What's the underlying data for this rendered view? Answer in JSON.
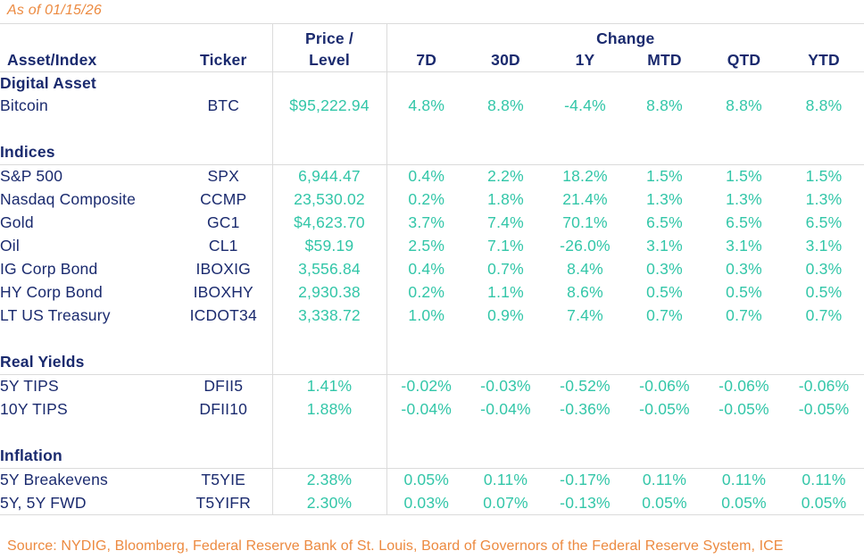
{
  "title": "As of 01/15/26",
  "source": "Source: NYDIG, Bloomberg, Federal Reserve Bank of St. Louis, Board of Governors of the Federal Reserve System, ICE",
  "colors": {
    "navy_text": "#1A2A6E",
    "teal_values": "#32C6A8",
    "orange_accent": "#EC8A40",
    "grid_lines": "#DBDBDB",
    "background": "#FFFFFF"
  },
  "table": {
    "headers": {
      "asset": "Asset/Index",
      "ticker": "Ticker",
      "price_line1": "Price /",
      "price_line2": "Level",
      "change": "Change",
      "periods": [
        "7D",
        "30D",
        "1Y",
        "MTD",
        "QTD",
        "YTD"
      ]
    },
    "sections": [
      {
        "label": "Digital Asset",
        "rows": [
          {
            "asset": "Bitcoin",
            "ticker": "BTC",
            "price": "$95,222.94",
            "changes": [
              "4.8%",
              "8.8%",
              "-4.4%",
              "8.8%",
              "8.8%",
              "8.8%"
            ]
          }
        ]
      },
      {
        "label": "Indices",
        "rows": [
          {
            "asset": "S&P 500",
            "ticker": "SPX",
            "price": "6,944.47",
            "changes": [
              "0.4%",
              "2.2%",
              "18.2%",
              "1.5%",
              "1.5%",
              "1.5%"
            ]
          },
          {
            "asset": "Nasdaq Composite",
            "ticker": "CCMP",
            "price": "23,530.02",
            "changes": [
              "0.2%",
              "1.8%",
              "21.4%",
              "1.3%",
              "1.3%",
              "1.3%"
            ]
          },
          {
            "asset": "Gold",
            "ticker": "GC1",
            "price": "$4,623.70",
            "changes": [
              "3.7%",
              "7.4%",
              "70.1%",
              "6.5%",
              "6.5%",
              "6.5%"
            ]
          },
          {
            "asset": "Oil",
            "ticker": "CL1",
            "price": "$59.19",
            "changes": [
              "2.5%",
              "7.1%",
              "-26.0%",
              "3.1%",
              "3.1%",
              "3.1%"
            ]
          },
          {
            "asset": "IG Corp Bond",
            "ticker": "IBOXIG",
            "price": "3,556.84",
            "changes": [
              "0.4%",
              "0.7%",
              "8.4%",
              "0.3%",
              "0.3%",
              "0.3%"
            ]
          },
          {
            "asset": "HY Corp Bond",
            "ticker": "IBOXHY",
            "price": "2,930.38",
            "changes": [
              "0.2%",
              "1.1%",
              "8.6%",
              "0.5%",
              "0.5%",
              "0.5%"
            ]
          },
          {
            "asset": "LT US Treasury",
            "ticker": "ICDOT34",
            "price": "3,338.72",
            "changes": [
              "1.0%",
              "0.9%",
              "7.4%",
              "0.7%",
              "0.7%",
              "0.7%"
            ]
          }
        ]
      },
      {
        "label": "Real Yields",
        "rows": [
          {
            "asset": "5Y TIPS",
            "ticker": "DFII5",
            "price": "1.41%",
            "changes": [
              "-0.02%",
              "-0.03%",
              "-0.52%",
              "-0.06%",
              "-0.06%",
              "-0.06%"
            ]
          },
          {
            "asset": "10Y TIPS",
            "ticker": "DFII10",
            "price": "1.88%",
            "changes": [
              "-0.04%",
              "-0.04%",
              "-0.36%",
              "-0.05%",
              "-0.05%",
              "-0.05%"
            ]
          }
        ]
      },
      {
        "label": "Inflation",
        "rows": [
          {
            "asset": "5Y Breakevens",
            "ticker": "T5YIE",
            "price": "2.38%",
            "changes": [
              "0.05%",
              "0.11%",
              "-0.17%",
              "0.11%",
              "0.11%",
              "0.11%"
            ]
          },
          {
            "asset": "5Y, 5Y FWD",
            "ticker": "T5YIFR",
            "price": "2.30%",
            "changes": [
              "0.03%",
              "0.07%",
              "-0.13%",
              "0.05%",
              "0.05%",
              "0.05%"
            ]
          }
        ]
      }
    ]
  }
}
